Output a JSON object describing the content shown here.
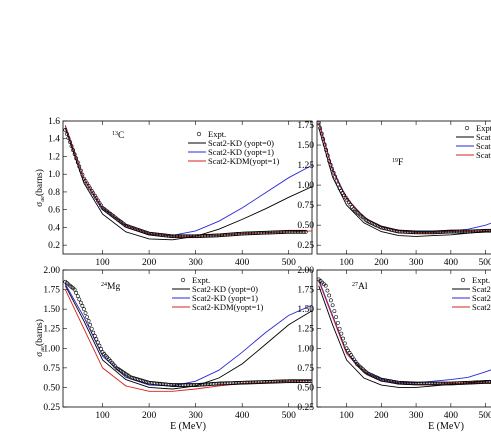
{
  "chart_data": [
    {
      "type": "line",
      "nucleus_mass": "13",
      "nucleus_symbol": "C",
      "ylabel_main": "σ",
      "ylabel_sub": "ae",
      "ylabel_unit": "(barns)",
      "xlim": [
        15,
        550
      ],
      "ylim": [
        0.1,
        1.6
      ],
      "xticks": [
        100,
        200,
        300,
        400,
        500
      ],
      "yticks": [
        0.2,
        0.4,
        0.6,
        0.8,
        1.0,
        1.2,
        1.4,
        1.6
      ],
      "ytick_labels": [
        "0.2",
        "0.4",
        "0.6",
        "0.8",
        "1.0",
        "1.2",
        "1.4",
        "1.6"
      ],
      "legend": [
        "Expt.",
        "Scat2-KD  (yopt=0)",
        "Scat2-KD  (yopt=1)",
        "Scat2-KDM(yopt=1)"
      ],
      "expt": {
        "x": [
          20,
          60,
          100,
          150,
          200,
          250,
          300,
          350,
          400,
          450,
          500,
          540
        ],
        "y": [
          1.5,
          0.95,
          0.62,
          0.42,
          0.33,
          0.3,
          0.3,
          0.31,
          0.33,
          0.34,
          0.35,
          0.35
        ]
      },
      "series": [
        {
          "x": [
            20,
            60,
            100,
            150,
            200,
            250,
            300,
            350,
            400,
            450,
            500,
            550
          ],
          "y": [
            1.52,
            0.9,
            0.55,
            0.35,
            0.27,
            0.26,
            0.3,
            0.38,
            0.49,
            0.61,
            0.74,
            0.86
          ]
        },
        {
          "x": [
            20,
            60,
            100,
            150,
            200,
            250,
            300,
            350,
            400,
            450,
            500,
            550
          ],
          "y": [
            1.55,
            0.95,
            0.6,
            0.4,
            0.32,
            0.31,
            0.36,
            0.47,
            0.62,
            0.79,
            0.96,
            1.1
          ]
        },
        {
          "x": [
            20,
            60,
            100,
            150,
            200,
            250,
            300,
            350,
            400,
            450,
            500,
            550
          ],
          "y": [
            1.54,
            0.95,
            0.62,
            0.42,
            0.33,
            0.3,
            0.3,
            0.31,
            0.33,
            0.34,
            0.35,
            0.36
          ]
        }
      ]
    },
    {
      "type": "line",
      "nucleus_mass": "19",
      "nucleus_symbol": "F",
      "xlim": [
        15,
        550
      ],
      "ylim": [
        0.14,
        1.8
      ],
      "xticks": [
        100,
        200,
        300,
        400,
        500
      ],
      "yticks": [
        0.25,
        0.5,
        0.75,
        1.0,
        1.25,
        1.5,
        1.75
      ],
      "ytick_labels": [
        "0.25",
        "0.50",
        "0.75",
        "1.00",
        "1.25",
        "1.50",
        "1.75"
      ],
      "legend": [
        "Expt",
        "Scat",
        "Scat",
        "Scat"
      ],
      "expt": {
        "x": [
          20,
          50,
          80,
          120,
          160,
          200,
          250,
          300,
          350,
          400,
          450,
          500,
          550
        ],
        "y": [
          1.78,
          1.3,
          0.96,
          0.7,
          0.55,
          0.47,
          0.42,
          0.41,
          0.41,
          0.42,
          0.42,
          0.43,
          0.43
        ]
      },
      "series": [
        {
          "x": [
            20,
            60,
            100,
            150,
            200,
            250,
            300,
            350,
            400,
            450,
            500,
            550
          ],
          "y": [
            1.72,
            1.1,
            0.75,
            0.53,
            0.42,
            0.37,
            0.36,
            0.37,
            0.38,
            0.4,
            0.42,
            0.44
          ]
        },
        {
          "x": [
            20,
            60,
            100,
            150,
            200,
            250,
            300,
            350,
            400,
            450,
            500,
            550
          ],
          "y": [
            1.8,
            1.2,
            0.84,
            0.6,
            0.48,
            0.43,
            0.42,
            0.42,
            0.43,
            0.45,
            0.5,
            0.58
          ]
        },
        {
          "x": [
            20,
            60,
            100,
            150,
            200,
            250,
            300,
            350,
            400,
            450,
            500,
            550
          ],
          "y": [
            1.78,
            1.18,
            0.83,
            0.6,
            0.48,
            0.43,
            0.41,
            0.41,
            0.42,
            0.42,
            0.43,
            0.43
          ]
        }
      ]
    },
    {
      "type": "line",
      "nucleus_mass": "24",
      "nucleus_symbol": "Mg",
      "ylabel_main": "σ",
      "ylabel_sub": "ae",
      "ylabel_unit": "(barns)",
      "xlabel": "E (MeV)",
      "xlim": [
        15,
        550
      ],
      "ylim": [
        0.25,
        2.0
      ],
      "xticks": [
        100,
        200,
        300,
        400,
        500
      ],
      "yticks": [
        0.25,
        0.5,
        0.75,
        1.0,
        1.25,
        1.5,
        1.75,
        2.0
      ],
      "ytick_labels": [
        "0.25",
        "0.50",
        "0.75",
        "1.00",
        "1.25",
        "1.50",
        "1.75",
        "2.00"
      ],
      "legend": [
        "Expt.",
        "Scat2-KD  (yopt=0)",
        "Scat2-KD  (yopt=1)",
        "Scat2-KDM(yopt=1)"
      ],
      "expt": {
        "x": [
          20,
          40,
          60,
          80,
          100,
          130,
          160,
          200,
          250,
          300,
          350,
          400,
          450,
          500,
          550
        ],
        "y": [
          1.85,
          1.75,
          1.5,
          1.2,
          0.95,
          0.75,
          0.63,
          0.56,
          0.53,
          0.53,
          0.55,
          0.56,
          0.57,
          0.58,
          0.58
        ]
      },
      "series": [
        {
          "x": [
            20,
            60,
            100,
            150,
            200,
            250,
            300,
            350,
            400,
            450,
            500,
            550
          ],
          "y": [
            1.8,
            1.35,
            0.85,
            0.6,
            0.5,
            0.48,
            0.52,
            0.62,
            0.8,
            1.05,
            1.3,
            1.48
          ]
        },
        {
          "x": [
            20,
            60,
            100,
            150,
            200,
            250,
            300,
            350,
            400,
            450,
            500,
            550
          ],
          "y": [
            1.82,
            1.4,
            0.9,
            0.63,
            0.53,
            0.52,
            0.58,
            0.72,
            0.95,
            1.2,
            1.42,
            1.55
          ]
        },
        {
          "x": [
            20,
            60,
            100,
            150,
            200,
            250,
            300,
            350,
            400,
            450,
            500,
            550
          ],
          "y": [
            1.75,
            1.25,
            0.75,
            0.52,
            0.45,
            0.45,
            0.48,
            0.52,
            0.55,
            0.56,
            0.58,
            0.59
          ]
        }
      ]
    },
    {
      "type": "line",
      "nucleus_mass": "27",
      "nucleus_symbol": "Al",
      "xlabel": "E (MeV)",
      "xlim": [
        15,
        550
      ],
      "ylim": [
        0.25,
        2.0
      ],
      "xticks": [
        100,
        200,
        300,
        400,
        500
      ],
      "yticks": [
        0.25,
        0.5,
        0.75,
        1.0,
        1.25,
        1.5,
        1.75,
        2.0
      ],
      "ytick_labels": [
        "0.25",
        "0.50",
        "0.75",
        "1.00",
        "1.25",
        "1.50",
        "1.75",
        "2.00"
      ],
      "legend": [
        "Expt.",
        "Scat2-",
        "Scat2-",
        "Scat2-"
      ],
      "expt": {
        "x": [
          20,
          40,
          60,
          80,
          100,
          130,
          160,
          200,
          250,
          300,
          350,
          400,
          450,
          500,
          550
        ],
        "y": [
          1.88,
          1.8,
          1.55,
          1.25,
          1.0,
          0.8,
          0.68,
          0.6,
          0.56,
          0.55,
          0.55,
          0.55,
          0.56,
          0.57,
          0.57
        ]
      },
      "series": [
        {
          "x": [
            20,
            60,
            100,
            150,
            200,
            250,
            300,
            350,
            400,
            450,
            500,
            550
          ],
          "y": [
            1.8,
            1.3,
            0.85,
            0.62,
            0.53,
            0.5,
            0.5,
            0.52,
            0.54,
            0.56,
            0.58,
            0.6
          ]
        },
        {
          "x": [
            20,
            60,
            100,
            150,
            200,
            250,
            300,
            350,
            400,
            450,
            500,
            550
          ],
          "y": [
            1.88,
            1.42,
            0.95,
            0.7,
            0.6,
            0.56,
            0.56,
            0.58,
            0.6,
            0.63,
            0.7,
            0.78
          ]
        },
        {
          "x": [
            20,
            60,
            100,
            150,
            200,
            250,
            300,
            350,
            400,
            450,
            500,
            550
          ],
          "y": [
            1.86,
            1.4,
            0.93,
            0.69,
            0.58,
            0.55,
            0.54,
            0.54,
            0.55,
            0.55,
            0.56,
            0.56
          ]
        }
      ]
    }
  ],
  "colors": {
    "kd0": "#000000",
    "kd1": "#2a2ad8",
    "kdm": "#d42020",
    "expt": "#000000"
  }
}
